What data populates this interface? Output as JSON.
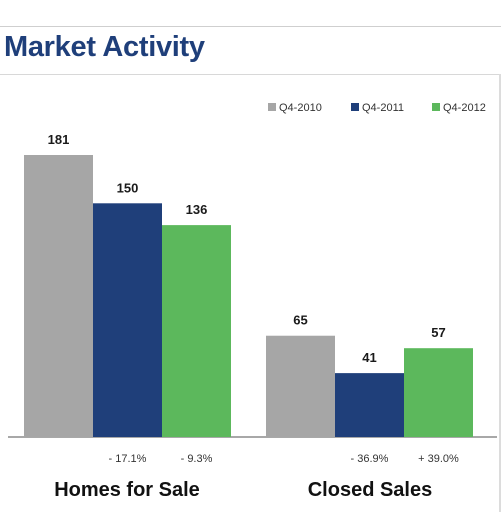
{
  "header": {
    "title": "Market Activity"
  },
  "chart_data": {
    "type": "bar",
    "categories": [
      "Homes for Sale",
      "Closed Sales"
    ],
    "series": [
      {
        "name": "Q4-2010",
        "color": "#a6a6a6",
        "values": [
          181,
          65
        ]
      },
      {
        "name": "Q4-2011",
        "color": "#1f3f7a",
        "values": [
          150,
          41
        ]
      },
      {
        "name": "Q4-2012",
        "color": "#5cb85c",
        "values": [
          136,
          57
        ]
      }
    ],
    "changes": [
      [
        "- 17.1%",
        "- 9.3%"
      ],
      [
        "- 36.9%",
        "+ 39.0%"
      ]
    ],
    "ylim": [
      0,
      181
    ],
    "grid": false,
    "legend": "top-right"
  }
}
